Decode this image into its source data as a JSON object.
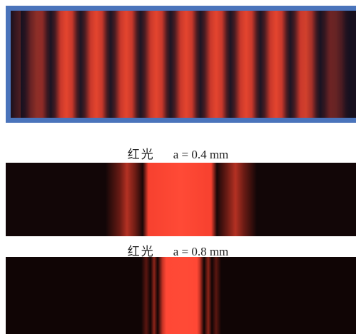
{
  "panels": [
    {
      "light": "红光",
      "slit": "a = 0.4 mm"
    },
    {
      "light": "红光",
      "slit": "a = 0.8 mm"
    }
  ]
}
